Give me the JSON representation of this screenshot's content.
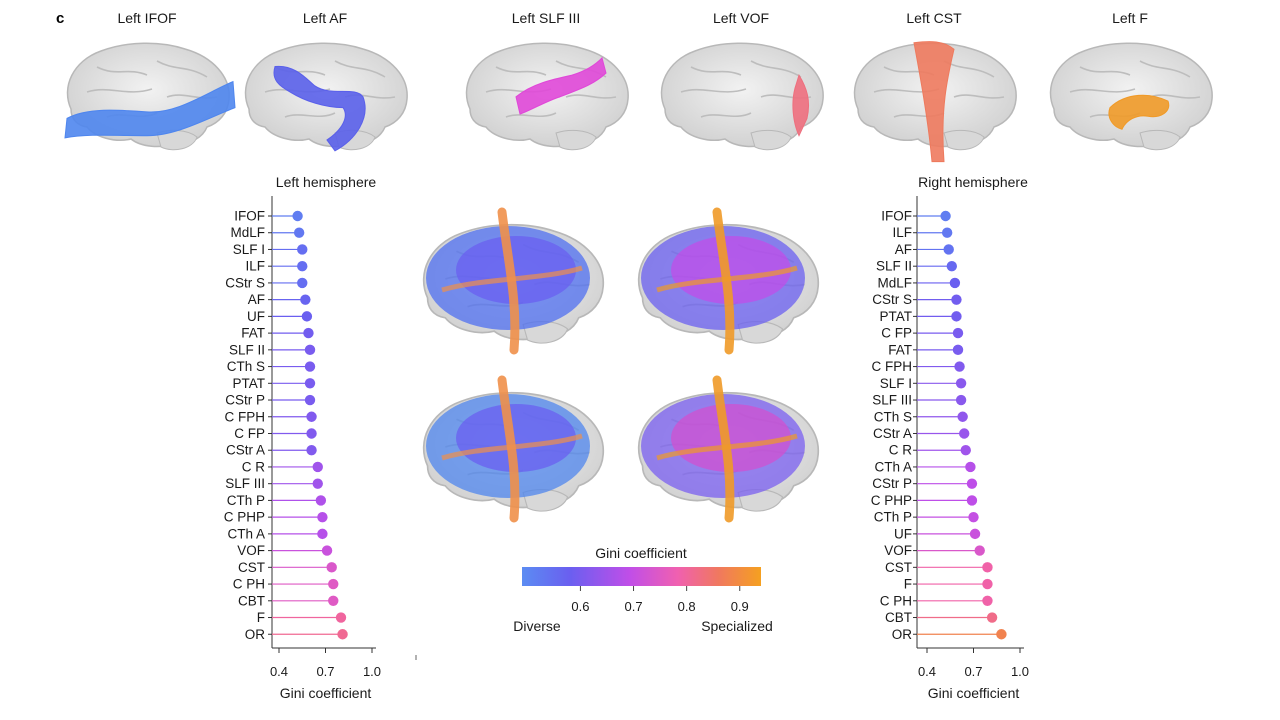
{
  "panel_letter": "c",
  "top_row": [
    {
      "title": "Left IFOF",
      "color": "#4f86ee"
    },
    {
      "title": "Left AF",
      "color": "#5a60ea"
    },
    {
      "title": "Left SLF III",
      "color": "#e048d8"
    },
    {
      "title": "Left VOF",
      "color": "#ee6f7e"
    },
    {
      "title": "Left CST",
      "color": "#ee7a5e"
    },
    {
      "title": "Left F",
      "color": "#f09a28"
    }
  ],
  "colorbar": {
    "title": "Gini coefficient",
    "min": 0.49,
    "max": 0.94,
    "ticks": [
      "0.6",
      "0.7",
      "0.8",
      "0.9"
    ],
    "tick_values": [
      0.6,
      0.7,
      0.8,
      0.9
    ],
    "left_label": "Diverse",
    "right_label": "Specialized",
    "stops": [
      "#5b8cf2",
      "#6a5ff0",
      "#c04ee8",
      "#f060b0",
      "#f07860",
      "#f5a020"
    ]
  },
  "chart_data": [
    {
      "type": "lollipop",
      "title": "Left hemisphere",
      "xlabel": "Gini coefficient",
      "xlim": [
        0.4,
        1.0
      ],
      "xticks": [
        "0.4",
        "0.7",
        "1.0"
      ],
      "xtick_values": [
        0.4,
        0.7,
        1.0
      ],
      "categories": [
        "IFOF",
        "MdLF",
        "SLF I",
        "ILF",
        "CStr S",
        "AF",
        "UF",
        "FAT",
        "SLF II",
        "CTh S",
        "PTAT",
        "CStr P",
        "C FPH",
        "C FP",
        "CStr A",
        "C R",
        "SLF III",
        "CTh P",
        "C PHP",
        "CTh A",
        "VOF",
        "CST",
        "C PH",
        "CBT",
        "F",
        "OR"
      ],
      "values": [
        0.52,
        0.53,
        0.55,
        0.55,
        0.55,
        0.57,
        0.58,
        0.59,
        0.6,
        0.6,
        0.6,
        0.6,
        0.61,
        0.61,
        0.61,
        0.65,
        0.65,
        0.67,
        0.68,
        0.68,
        0.71,
        0.74,
        0.75,
        0.75,
        0.8,
        0.81
      ]
    },
    {
      "type": "lollipop",
      "title": "Right hemisphere",
      "xlabel": "Gini coefficient",
      "xlim": [
        0.4,
        1.0
      ],
      "xticks": [
        "0.4",
        "0.7",
        "1.0"
      ],
      "xtick_values": [
        0.4,
        0.7,
        1.0
      ],
      "categories": [
        "IFOF",
        "ILF",
        "AF",
        "SLF II",
        "MdLF",
        "CStr S",
        "PTAT",
        "C FP",
        "FAT",
        "C FPH",
        "SLF I",
        "SLF III",
        "CTh S",
        "CStr A",
        "C R",
        "CTh A",
        "CStr P",
        "C PHP",
        "CTh P",
        "UF",
        "VOF",
        "CST",
        "F",
        "C PH",
        "CBT",
        "OR"
      ],
      "values": [
        0.52,
        0.53,
        0.54,
        0.56,
        0.58,
        0.59,
        0.59,
        0.6,
        0.6,
        0.61,
        0.62,
        0.62,
        0.63,
        0.64,
        0.65,
        0.68,
        0.69,
        0.69,
        0.7,
        0.71,
        0.74,
        0.79,
        0.79,
        0.79,
        0.82,
        0.88
      ]
    }
  ]
}
